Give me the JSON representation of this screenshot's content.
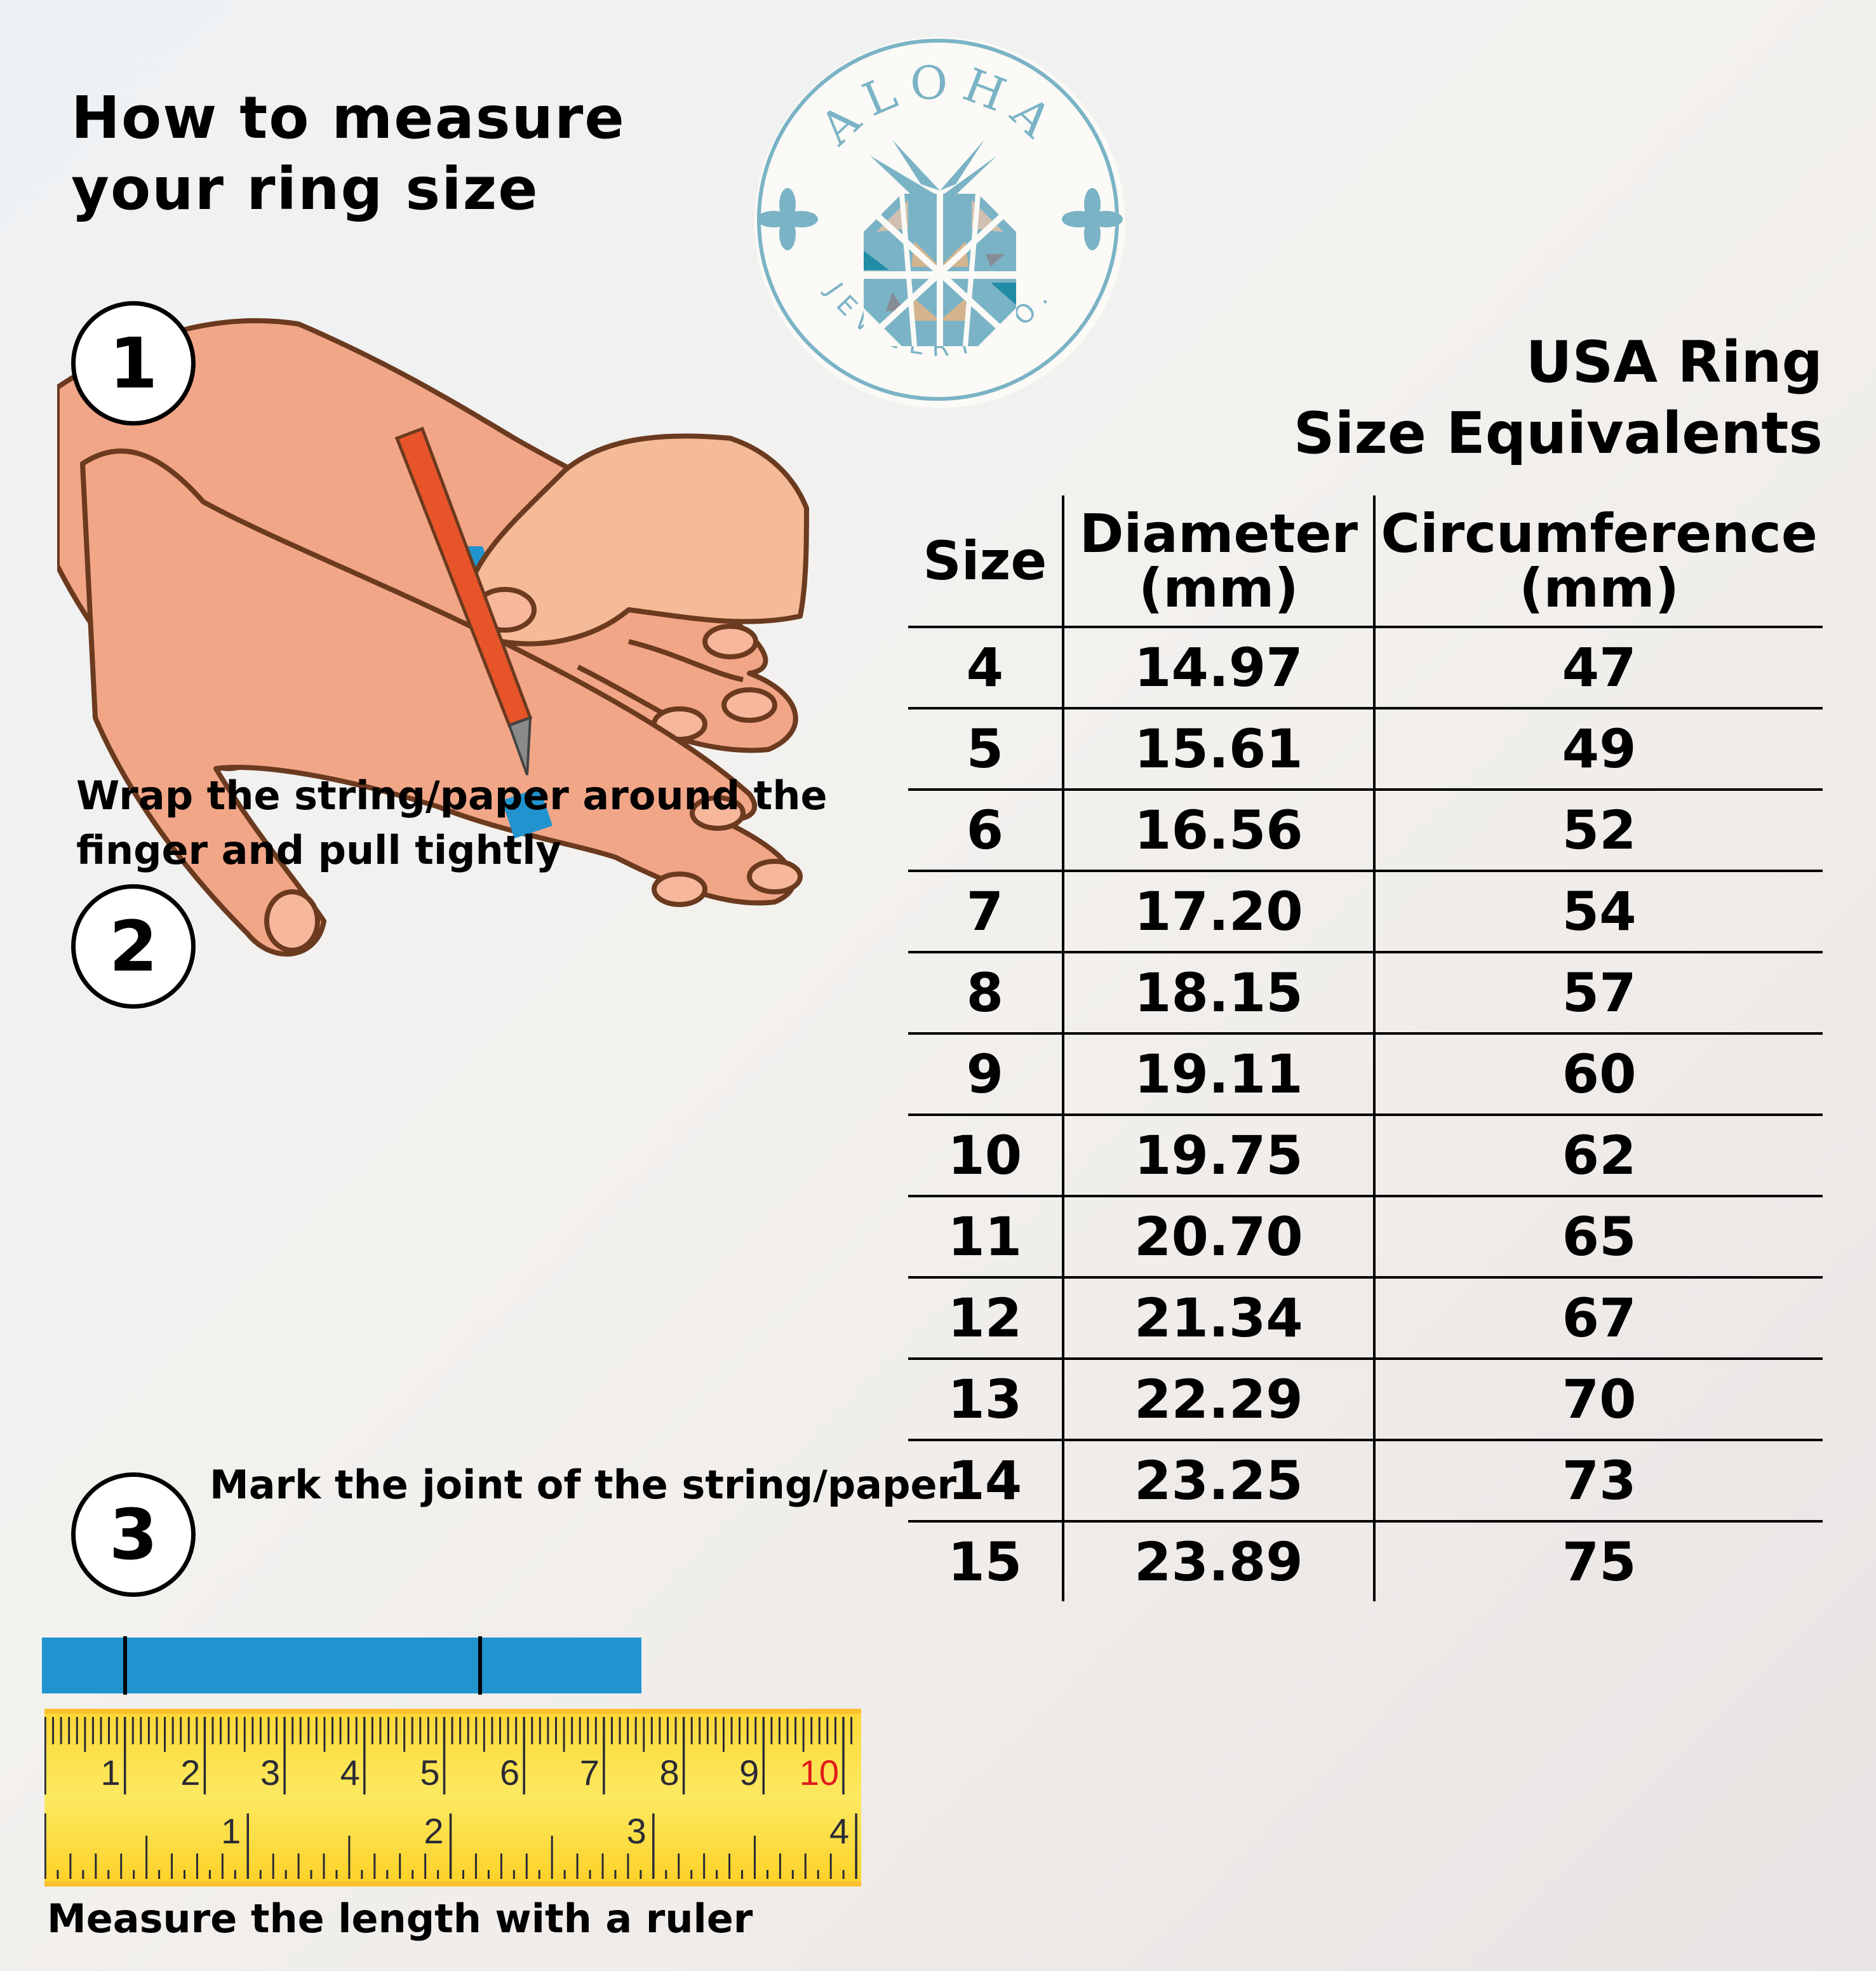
{
  "title": {
    "line1": "How to measure",
    "line2": "your ring size"
  },
  "logo": {
    "brand": "ALOHA",
    "subtitle": "JEWELRY CO.",
    "color": "#7bb3c6"
  },
  "steps": [
    {
      "number": "1",
      "text_line1": "Wrap the string/paper around the",
      "text_line2": "finger and pull tightly"
    },
    {
      "number": "2",
      "text_line1": "Mark the joint of the string/paper"
    },
    {
      "number": "3",
      "text_line1": "Measure the length with a ruler"
    }
  ],
  "table": {
    "title_line1": "USA Ring",
    "title_line2": "Size Equivalents",
    "headers": [
      {
        "line1": "Size",
        "line2": ""
      },
      {
        "line1": "Diameter",
        "line2": "(mm)"
      },
      {
        "line1": "Circumference",
        "line2": "(mm)"
      }
    ],
    "rows": [
      [
        "4",
        "14.97",
        "47"
      ],
      [
        "5",
        "15.61",
        "49"
      ],
      [
        "6",
        "16.56",
        "52"
      ],
      [
        "7",
        "17.20",
        "54"
      ],
      [
        "8",
        "18.15",
        "57"
      ],
      [
        "9",
        "19.11",
        "60"
      ],
      [
        "10",
        "19.75",
        "62"
      ],
      [
        "11",
        "20.70",
        "65"
      ],
      [
        "12",
        "21.34",
        "67"
      ],
      [
        "13",
        "22.29",
        "70"
      ],
      [
        "14",
        "23.25",
        "73"
      ],
      [
        "15",
        "23.89",
        "75"
      ]
    ]
  },
  "ruler": {
    "cm_labels": [
      "1",
      "2",
      "3",
      "4",
      "5",
      "6",
      "7",
      "8",
      "9",
      "10"
    ],
    "inch_labels": [
      "1",
      "2",
      "3",
      "4"
    ],
    "highlight_label_color": "#e01b1b",
    "tape_color": "#fbe458"
  },
  "colors": {
    "skin": "#f2a688",
    "outline": "#6b3a1f",
    "string": "#2193cf",
    "pencil": "#e8542a"
  }
}
